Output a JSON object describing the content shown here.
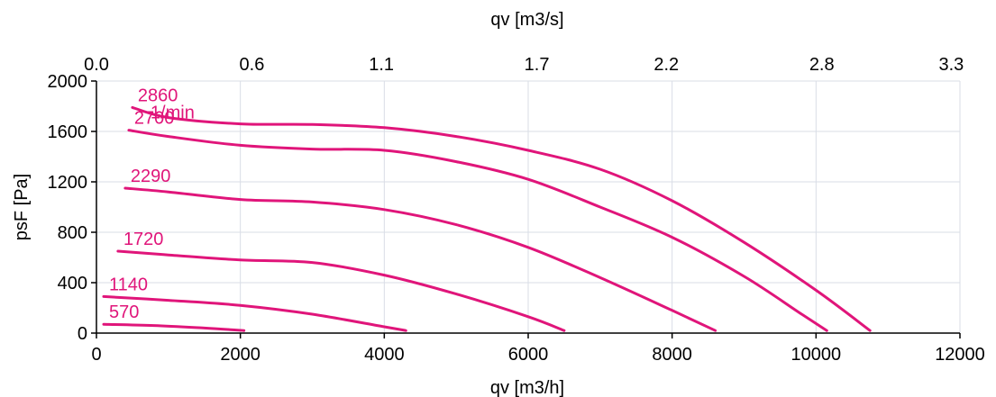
{
  "chart_data": {
    "type": "line",
    "title": "",
    "xlabel": "qv [m3/h]",
    "ylabel": "psF [Pa]",
    "x2label": "qv [m3/s]",
    "xlim": [
      0,
      12000
    ],
    "ylim": [
      0,
      2000
    ],
    "x_ticks": [
      0,
      2000,
      4000,
      6000,
      8000,
      10000,
      12000
    ],
    "x_tick_labels": [
      "0",
      "2000",
      "4000",
      "6000",
      "8000",
      "10000",
      "12000"
    ],
    "y_ticks": [
      0,
      400,
      800,
      1200,
      1600,
      2000
    ],
    "y_tick_labels": [
      "0",
      "400",
      "800",
      "1200",
      "1600",
      "2000"
    ],
    "x2_ticks": [
      0.0,
      0.6,
      1.1,
      1.7,
      2.2,
      2.8,
      3.3
    ],
    "x2_tick_labels": [
      "0.0",
      "0.6",
      "1.1",
      "1.7",
      "2.2",
      "2.8",
      "3.3"
    ],
    "grid": true,
    "curve_color": "#e0157a",
    "speed_unit": "1/min",
    "series": [
      {
        "name": "2860",
        "x": [
          500,
          1000,
          2000,
          3000,
          4000,
          5000,
          6000,
          7000,
          8000,
          9000,
          10000,
          10750
        ],
        "y": [
          1790,
          1710,
          1660,
          1655,
          1630,
          1560,
          1450,
          1300,
          1050,
          720,
          340,
          20
        ]
      },
      {
        "name": "2700",
        "x": [
          450,
          1000,
          2000,
          3000,
          4000,
          5000,
          6000,
          7000,
          8000,
          9000,
          9800,
          10150
        ],
        "y": [
          1610,
          1560,
          1490,
          1460,
          1450,
          1360,
          1220,
          1000,
          760,
          450,
          150,
          20
        ]
      },
      {
        "name": "2290",
        "x": [
          400,
          1000,
          2000,
          3000,
          4000,
          5000,
          6000,
          7000,
          8000,
          8600
        ],
        "y": [
          1150,
          1120,
          1060,
          1040,
          980,
          860,
          680,
          440,
          180,
          20
        ]
      },
      {
        "name": "1720",
        "x": [
          300,
          1000,
          2000,
          3000,
          4000,
          5000,
          6000,
          6500
        ],
        "y": [
          650,
          620,
          580,
          560,
          460,
          310,
          130,
          20
        ]
      },
      {
        "name": "1140",
        "x": [
          100,
          1000,
          2000,
          3000,
          4000,
          4300
        ],
        "y": [
          290,
          260,
          220,
          150,
          50,
          20
        ]
      },
      {
        "name": "570",
        "x": [
          100,
          800,
          1500,
          2050
        ],
        "y": [
          70,
          60,
          40,
          20
        ]
      }
    ]
  }
}
